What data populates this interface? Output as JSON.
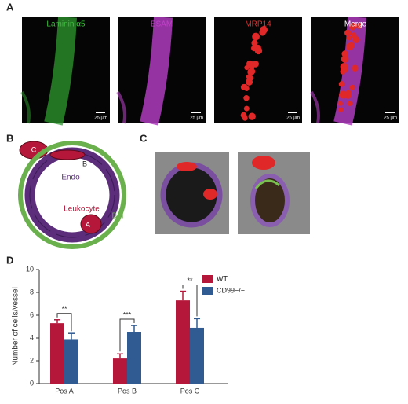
{
  "panel_a": {
    "label": "A",
    "images": [
      {
        "title": "Laminin α5",
        "color": "#3fbf3f",
        "scale": "25 µm"
      },
      {
        "title": "ESAM",
        "color": "#c23fc8",
        "scale": "25 µm"
      },
      {
        "title": "MRP14",
        "color": "#e03030",
        "scale": "25 µm"
      },
      {
        "title": "Merge",
        "color": "#ffffff",
        "scale": "25 µm"
      }
    ]
  },
  "panel_b": {
    "label": "B",
    "positions": [
      "C",
      "B",
      "A"
    ],
    "labels": {
      "endo": "Endo",
      "leukocyte": "Leukocyte",
      "bm": "BM"
    }
  },
  "panel_c": {
    "label": "C"
  },
  "panel_d": {
    "label": "D"
  },
  "chart_data": {
    "type": "bar",
    "y_label": "Number of cells/vessel",
    "categories": [
      "Pos A",
      "Pos B",
      "Pos C"
    ],
    "series": [
      {
        "name": "WT",
        "color": "#b5173a",
        "values": [
          5.3,
          2.2,
          7.3
        ],
        "errors": [
          0.3,
          0.4,
          0.8
        ]
      },
      {
        "name": "CD99−/−",
        "color": "#2f5a92",
        "values": [
          3.9,
          4.5,
          4.9
        ],
        "errors": [
          0.5,
          0.6,
          0.8
        ]
      }
    ],
    "significance": [
      "**",
      "***",
      "**"
    ],
    "ylim": [
      0,
      10
    ],
    "yticks": [
      0,
      2,
      4,
      6,
      8,
      10
    ]
  }
}
